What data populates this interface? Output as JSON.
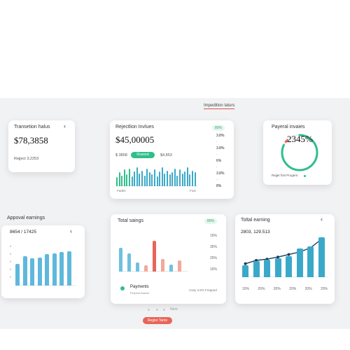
{
  "top_link": "Impedition Iaturs",
  "card1": {
    "title": "Transetion halus",
    "value": "$78,3858",
    "foot": "Rejject 3,2253"
  },
  "card2": {
    "title": "Rejectlion Invlues",
    "badge": "80%",
    "value": "$45,00005",
    "sub_left": "$ 3858",
    "pill": "Roseed",
    "sub_right": "$4,853",
    "side": [
      "3.8%",
      "3.8%",
      "6%",
      "3.8%",
      "8%"
    ],
    "side_small": [
      "-",
      "-",
      "-",
      "-"
    ],
    "axis_left": "Fades",
    "axis_right": "Fost"
  },
  "card3": {
    "title": "Payeral invaies",
    "value": "2345%",
    "foot": "Rejjet fost Progent",
    "progress": 0.82
  },
  "card4": {
    "title": "Appoval earnings",
    "value": "8654 / 17425",
    "ylabels": [
      "8",
      "8",
      "8",
      "8",
      "8"
    ]
  },
  "card5": {
    "title": "Total saings",
    "badge": "80%",
    "right_labels": [
      "16%",
      "35%",
      "25%",
      "16%"
    ],
    "legend_title": "Payments",
    "legend_sub": "Perpent fostect",
    "legend_right": "Casy 3.5% Frepped"
  },
  "card6": {
    "title": "Toltal earning",
    "value": "2803, 129.513",
    "xlabels": [
      "10%",
      "20%",
      "20%",
      "20%",
      "20%",
      "20%"
    ]
  },
  "pager_text": "Nere",
  "footer_button": "Regior Tanto",
  "chart_data": [
    {
      "type": "bar",
      "title": "Rejectlion Invlues",
      "values": [
        0.45,
        0.7,
        0.55,
        0.85,
        0.6,
        0.9,
        0.5,
        0.75,
        0.95,
        0.65,
        0.8,
        0.55,
        0.9,
        0.7,
        0.6,
        0.85,
        0.5,
        0.75,
        0.95,
        0.65,
        0.8,
        0.6,
        0.7,
        0.9,
        0.55,
        0.85,
        0.65,
        0.75,
        0.95,
        0.6,
        0.8,
        0.7
      ],
      "color": "#3aa9c9",
      "accent_color": "#2fbf8a",
      "accent_count": 6
    },
    {
      "type": "bar",
      "title": "Appoval earnings",
      "values": [
        0.55,
        0.75,
        0.7,
        0.72,
        0.8,
        0.82,
        0.85,
        0.88
      ],
      "color": "#5fb8dc"
    },
    {
      "type": "bar",
      "title": "Total saings",
      "bars": [
        {
          "value": 0.65,
          "color": "#6fc0e0"
        },
        {
          "value": 0.5,
          "color": "#6fc0e0"
        },
        {
          "value": 0.25,
          "color": "#6fc0e0"
        },
        {
          "value": 0.18,
          "color": "#f4a79a"
        },
        {
          "value": 0.85,
          "color": "#e8655a"
        },
        {
          "value": 0.35,
          "color": "#f4a79a"
        },
        {
          "value": 0.2,
          "color": "#6fc0e0"
        },
        {
          "value": 0.3,
          "color": "#f4a79a"
        }
      ]
    },
    {
      "type": "bar",
      "title": "Toltal earning",
      "values": [
        0.28,
        0.38,
        0.42,
        0.45,
        0.5,
        0.68,
        0.74,
        0.95
      ],
      "line": [
        0.32,
        0.4,
        0.43,
        0.48,
        0.54,
        0.6,
        0.7,
        0.9
      ],
      "color": "#3aa9c9"
    }
  ]
}
